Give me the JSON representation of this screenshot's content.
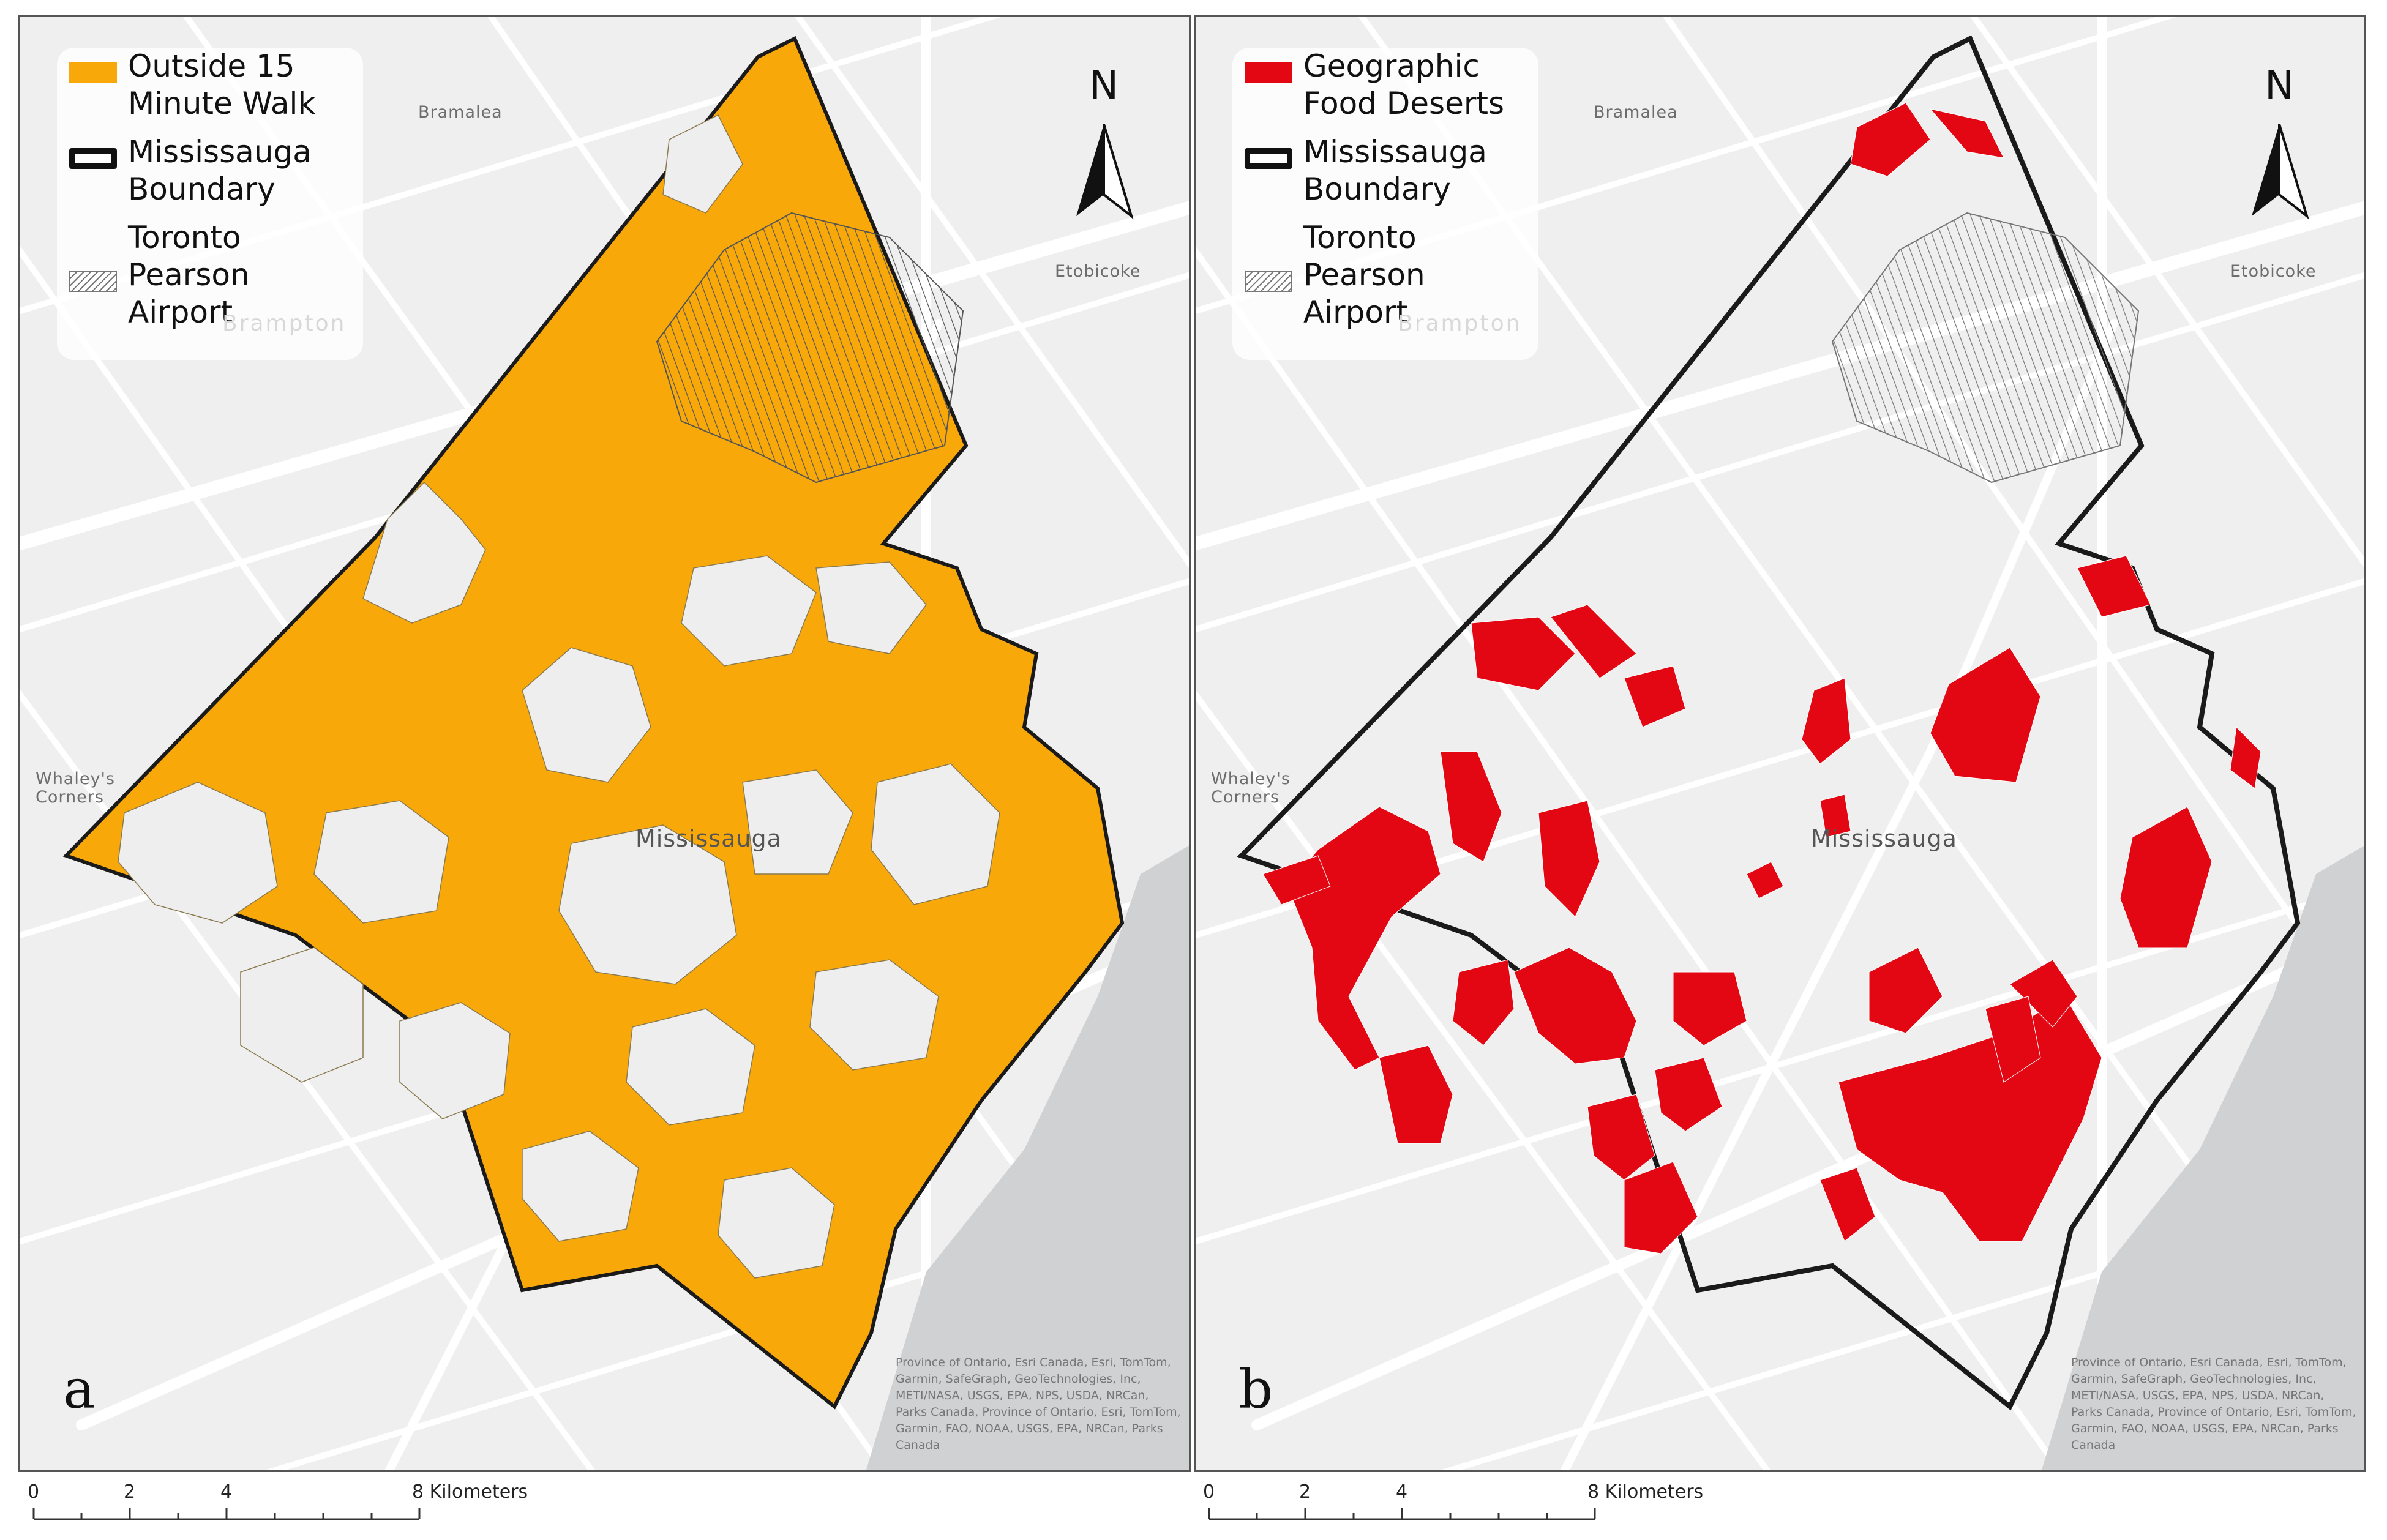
{
  "colors": {
    "background_map": "#efefef",
    "road": "#ffffff",
    "water": "#cfd1d2",
    "boundary": "#1a1a1a",
    "walk_fill": "#f9a80a",
    "desert_fill": "#e30613"
  },
  "panels": [
    {
      "letter": "a",
      "legend": [
        {
          "label": "Outside 15 Minute Walk",
          "symbol": "orange-fill"
        },
        {
          "label": "Mississauga Boundary",
          "symbol": "black-outline"
        },
        {
          "label": "Toronto Pearson Airport",
          "symbol": "hatch"
        }
      ],
      "places": {
        "bramalea": "Bramalea",
        "brampton": "Brampton",
        "etobicoke": "Etobicoke",
        "whaleys_corners": "Whaley's Corners",
        "mississauga": "Mississauga"
      },
      "north_label": "N",
      "attribution": "Province of Ontario, Esri Canada, Esri, TomTom, Garmin, SafeGraph, GeoTechnologies, Inc, METI/NASA, USGS, EPA, NPS, USDA, NRCan, Parks Canada, Province of Ontario, Esri, TomTom, Garmin, FAO, NOAA, USGS, EPA, NRCan, Parks Canada"
    },
    {
      "letter": "b",
      "legend": [
        {
          "label": "Geographic Food Deserts",
          "symbol": "red-fill"
        },
        {
          "label": "Mississauga Boundary",
          "symbol": "black-outline"
        },
        {
          "label": "Toronto Pearson Airport",
          "symbol": "hatch"
        }
      ],
      "places": {
        "bramalea": "Bramalea",
        "brampton": "Brampton",
        "etobicoke": "Etobicoke",
        "whaleys_corners": "Whaley's Corners",
        "mississauga": "Mississauga"
      },
      "north_label": "N",
      "attribution": "Province of Ontario, Esri Canada, Esri, TomTom, Garmin, SafeGraph, GeoTechnologies, Inc, METI/NASA, USGS, EPA, NPS, USDA, NRCan, Parks Canada, Province of Ontario, Esri, TomTom, Garmin, FAO, NOAA, USGS, EPA, NRCan, Parks Canada"
    }
  ],
  "scalebar": {
    "ticks": [
      "0",
      "2",
      "4"
    ],
    "end_label": "8 Kilometers"
  }
}
